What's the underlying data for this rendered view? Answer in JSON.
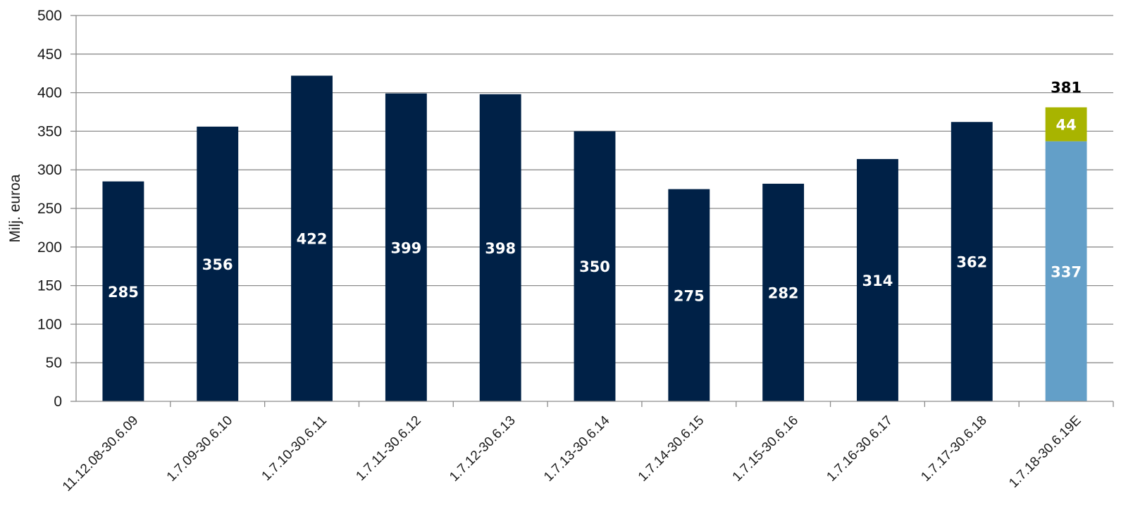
{
  "chart_data": {
    "type": "bar",
    "ylabel": "Milj. euroa",
    "ylim": [
      0,
      500
    ],
    "ytick_step": 50,
    "yticks": [
      "0",
      "50",
      "100",
      "150",
      "200",
      "250",
      "300",
      "350",
      "400",
      "450",
      "500"
    ],
    "grid": true,
    "categories": [
      "11.12.08-30.6.09",
      "1.7.09-30.6.10",
      "1.7.10-30.6.11",
      "1.7.11-30.6.12",
      "1.7.12-30.6.13",
      "1.7.13-30.6.14",
      "1.7.14-30.6.15",
      "1.7.15-30.6.16",
      "1.7.16-30.6.17",
      "1.7.17-30.6.18",
      "1.7.18-30.6.19E"
    ],
    "series": [
      {
        "values": [
          285,
          356,
          422,
          399,
          398,
          350,
          275,
          282,
          314,
          362,
          null
        ],
        "color": "#002147"
      },
      {
        "values": [
          null,
          null,
          null,
          null,
          null,
          null,
          null,
          null,
          null,
          null,
          337
        ],
        "color": "#639fc8"
      },
      {
        "values": [
          null,
          null,
          null,
          null,
          null,
          null,
          null,
          null,
          null,
          null,
          44
        ],
        "color": "#a8b400"
      }
    ],
    "totals": [
      {
        "category": "1.7.18-30.6.19E",
        "value": 381
      }
    ]
  }
}
